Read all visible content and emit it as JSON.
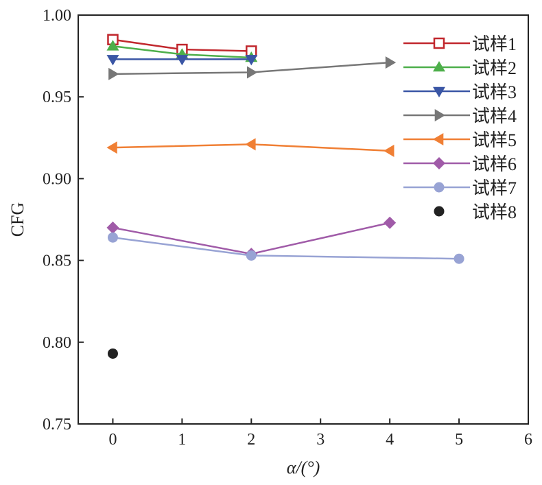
{
  "chart_data": {
    "type": "line",
    "xlabel": "α/(°)",
    "ylabel": "CFG",
    "xlim": [
      -0.5,
      6
    ],
    "ylim": [
      0.75,
      1.0
    ],
    "xticks": [
      "0",
      "1",
      "2",
      "3",
      "4",
      "5",
      "6"
    ],
    "yticks": [
      "0.75",
      "0.80",
      "0.85",
      "0.90",
      "0.95",
      "1.00"
    ],
    "grid": false,
    "legend_position": "top-right",
    "series": [
      {
        "name": "试样1",
        "color": "#c1272d",
        "marker": "square-open",
        "x": [
          0,
          1,
          2
        ],
        "y": [
          0.985,
          0.979,
          0.978
        ]
      },
      {
        "name": "试样2",
        "color": "#4daf4a",
        "marker": "triangle-up",
        "x": [
          0,
          1,
          2
        ],
        "y": [
          0.981,
          0.976,
          0.974
        ]
      },
      {
        "name": "试样3",
        "color": "#3a56a5",
        "marker": "triangle-down",
        "x": [
          0,
          1,
          2
        ],
        "y": [
          0.973,
          0.973,
          0.973
        ]
      },
      {
        "name": "试样4",
        "color": "#777777",
        "marker": "triangle-right",
        "x": [
          0,
          2,
          4
        ],
        "y": [
          0.964,
          0.965,
          0.971
        ]
      },
      {
        "name": "试样5",
        "color": "#f07f34",
        "marker": "triangle-left",
        "x": [
          0,
          2,
          4
        ],
        "y": [
          0.919,
          0.921,
          0.917
        ]
      },
      {
        "name": "试样6",
        "color": "#a05ba8",
        "marker": "diamond",
        "x": [
          0,
          2,
          4
        ],
        "y": [
          0.87,
          0.854,
          0.873
        ]
      },
      {
        "name": "试样7",
        "color": "#98a3d4",
        "marker": "circle",
        "x": [
          0,
          2,
          5
        ],
        "y": [
          0.864,
          0.853,
          0.851
        ]
      },
      {
        "name": "试样8",
        "color": "#222222",
        "marker": "circle",
        "line": false,
        "x": [
          0
        ],
        "y": [
          0.793
        ]
      }
    ]
  }
}
